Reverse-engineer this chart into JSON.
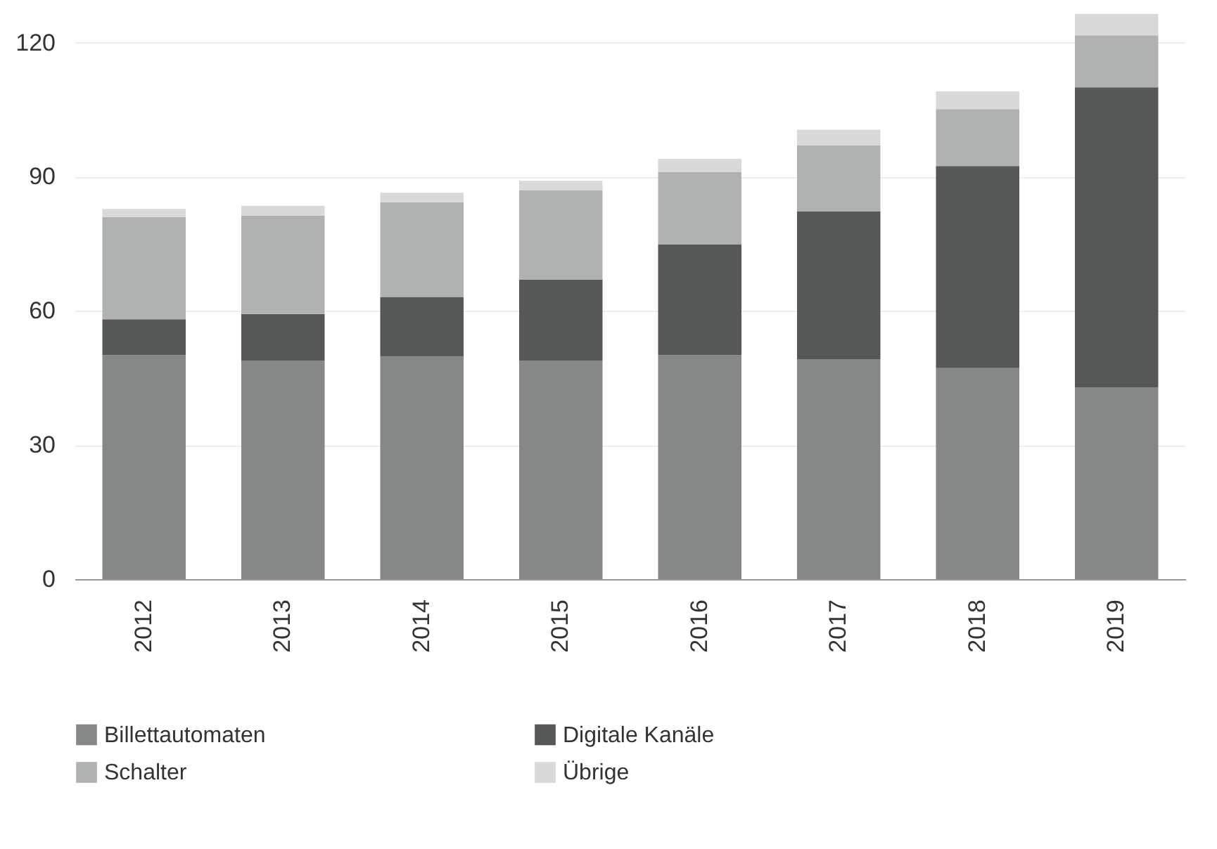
{
  "chart_data": {
    "type": "bar",
    "stacked": true,
    "categories": [
      "2012",
      "2013",
      "2014",
      "2015",
      "2016",
      "2017",
      "2018",
      "2019"
    ],
    "series": [
      {
        "name": "Billettautomaten",
        "color": "#868887",
        "values": [
          50.1,
          48.8,
          49.8,
          48.8,
          50.1,
          49.2,
          47.2,
          42.9
        ]
      },
      {
        "name": "Digitale Kanäle",
        "color": "#555857",
        "values": [
          8.0,
          10.5,
          13.3,
          18.2,
          24.8,
          33.1,
          45.2,
          67.1
        ]
      },
      {
        "name": "Schalter",
        "color": "#b0b2b1",
        "values": [
          22.9,
          22.0,
          21.2,
          19.9,
          16.2,
          14.7,
          12.7,
          11.6
        ]
      },
      {
        "name": "Übrige",
        "color": "#d8d9d8",
        "values": [
          1.8,
          2.2,
          2.1,
          2.2,
          2.9,
          3.5,
          4.0,
          4.8
        ]
      }
    ],
    "ylim": [
      0,
      127
    ],
    "yticks": [
      0,
      30,
      60,
      90,
      120
    ],
    "grid": "y",
    "legend": "bottom"
  }
}
